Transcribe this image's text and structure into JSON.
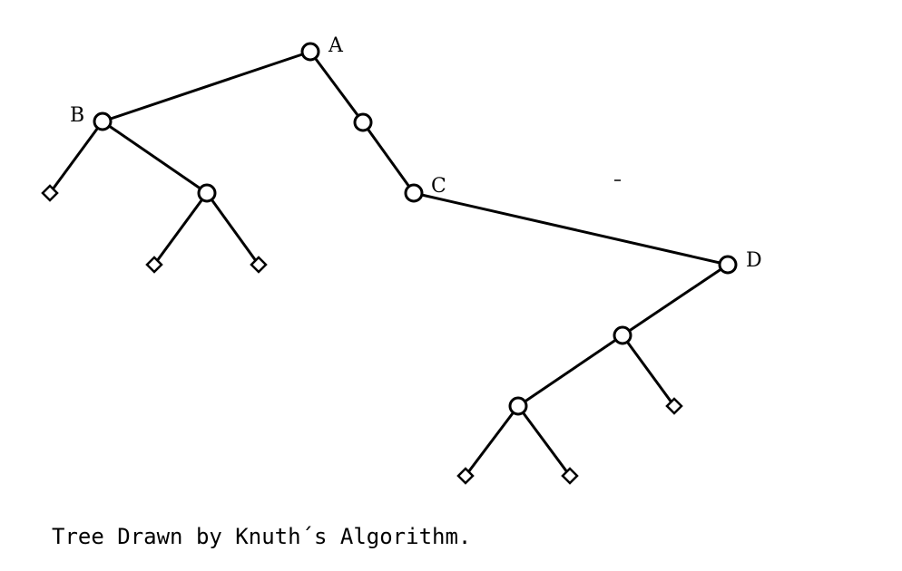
{
  "diagram": {
    "caption": "Tree Drawn by Knuth´s Algorithm.",
    "node_labels": {
      "a": "A",
      "b": "B",
      "c": "C",
      "d": "D"
    }
  }
}
